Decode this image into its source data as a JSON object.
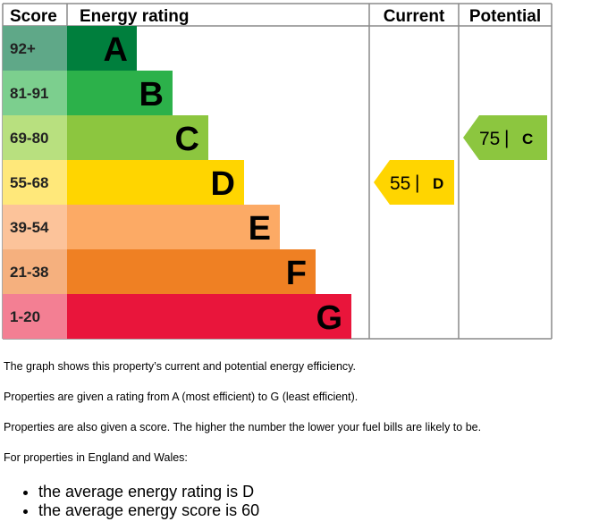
{
  "chart_data": {
    "type": "bar",
    "headers": {
      "score": "Score",
      "energy_rating": "Energy rating",
      "current": "Current",
      "potential": "Potential"
    },
    "bands": [
      {
        "score": "92+",
        "letter": "A",
        "score_color": "#5fa888",
        "bar_color": "#007f3d"
      },
      {
        "score": "81-91",
        "letter": "B",
        "score_color": "#7ccf8e",
        "bar_color": "#2cb14a"
      },
      {
        "score": "69-80",
        "letter": "C",
        "score_color": "#b8e07f",
        "bar_color": "#8cc63f"
      },
      {
        "score": "55-68",
        "letter": "D",
        "score_color": "#ffe87a",
        "bar_color": "#ffd500"
      },
      {
        "score": "39-54",
        "letter": "E",
        "score_color": "#fcc39a",
        "bar_color": "#fcaa65"
      },
      {
        "score": "21-38",
        "letter": "F",
        "score_color": "#f5b07e",
        "bar_color": "#ef8023"
      },
      {
        "score": "1-20",
        "letter": "G",
        "score_color": "#f37f93",
        "bar_color": "#e9153b"
      }
    ],
    "current": {
      "score": 55,
      "letter": "D",
      "band_index": 3,
      "color": "#ffd500"
    },
    "potential": {
      "score": 75,
      "letter": "C",
      "band_index": 2,
      "color": "#8cc63f"
    },
    "separator": "|"
  },
  "description": {
    "line1": "The graph shows this property’s current and potential energy efficiency.",
    "line2": "Properties are given a rating from A (most efficient) to G (least efficient).",
    "line3": "Properties are also given a score. The higher the number the lower your fuel bills are likely to be.",
    "line4": "For properties in England and Wales:",
    "bullets": [
      "the average energy rating is D",
      "the average energy score is 60"
    ]
  }
}
